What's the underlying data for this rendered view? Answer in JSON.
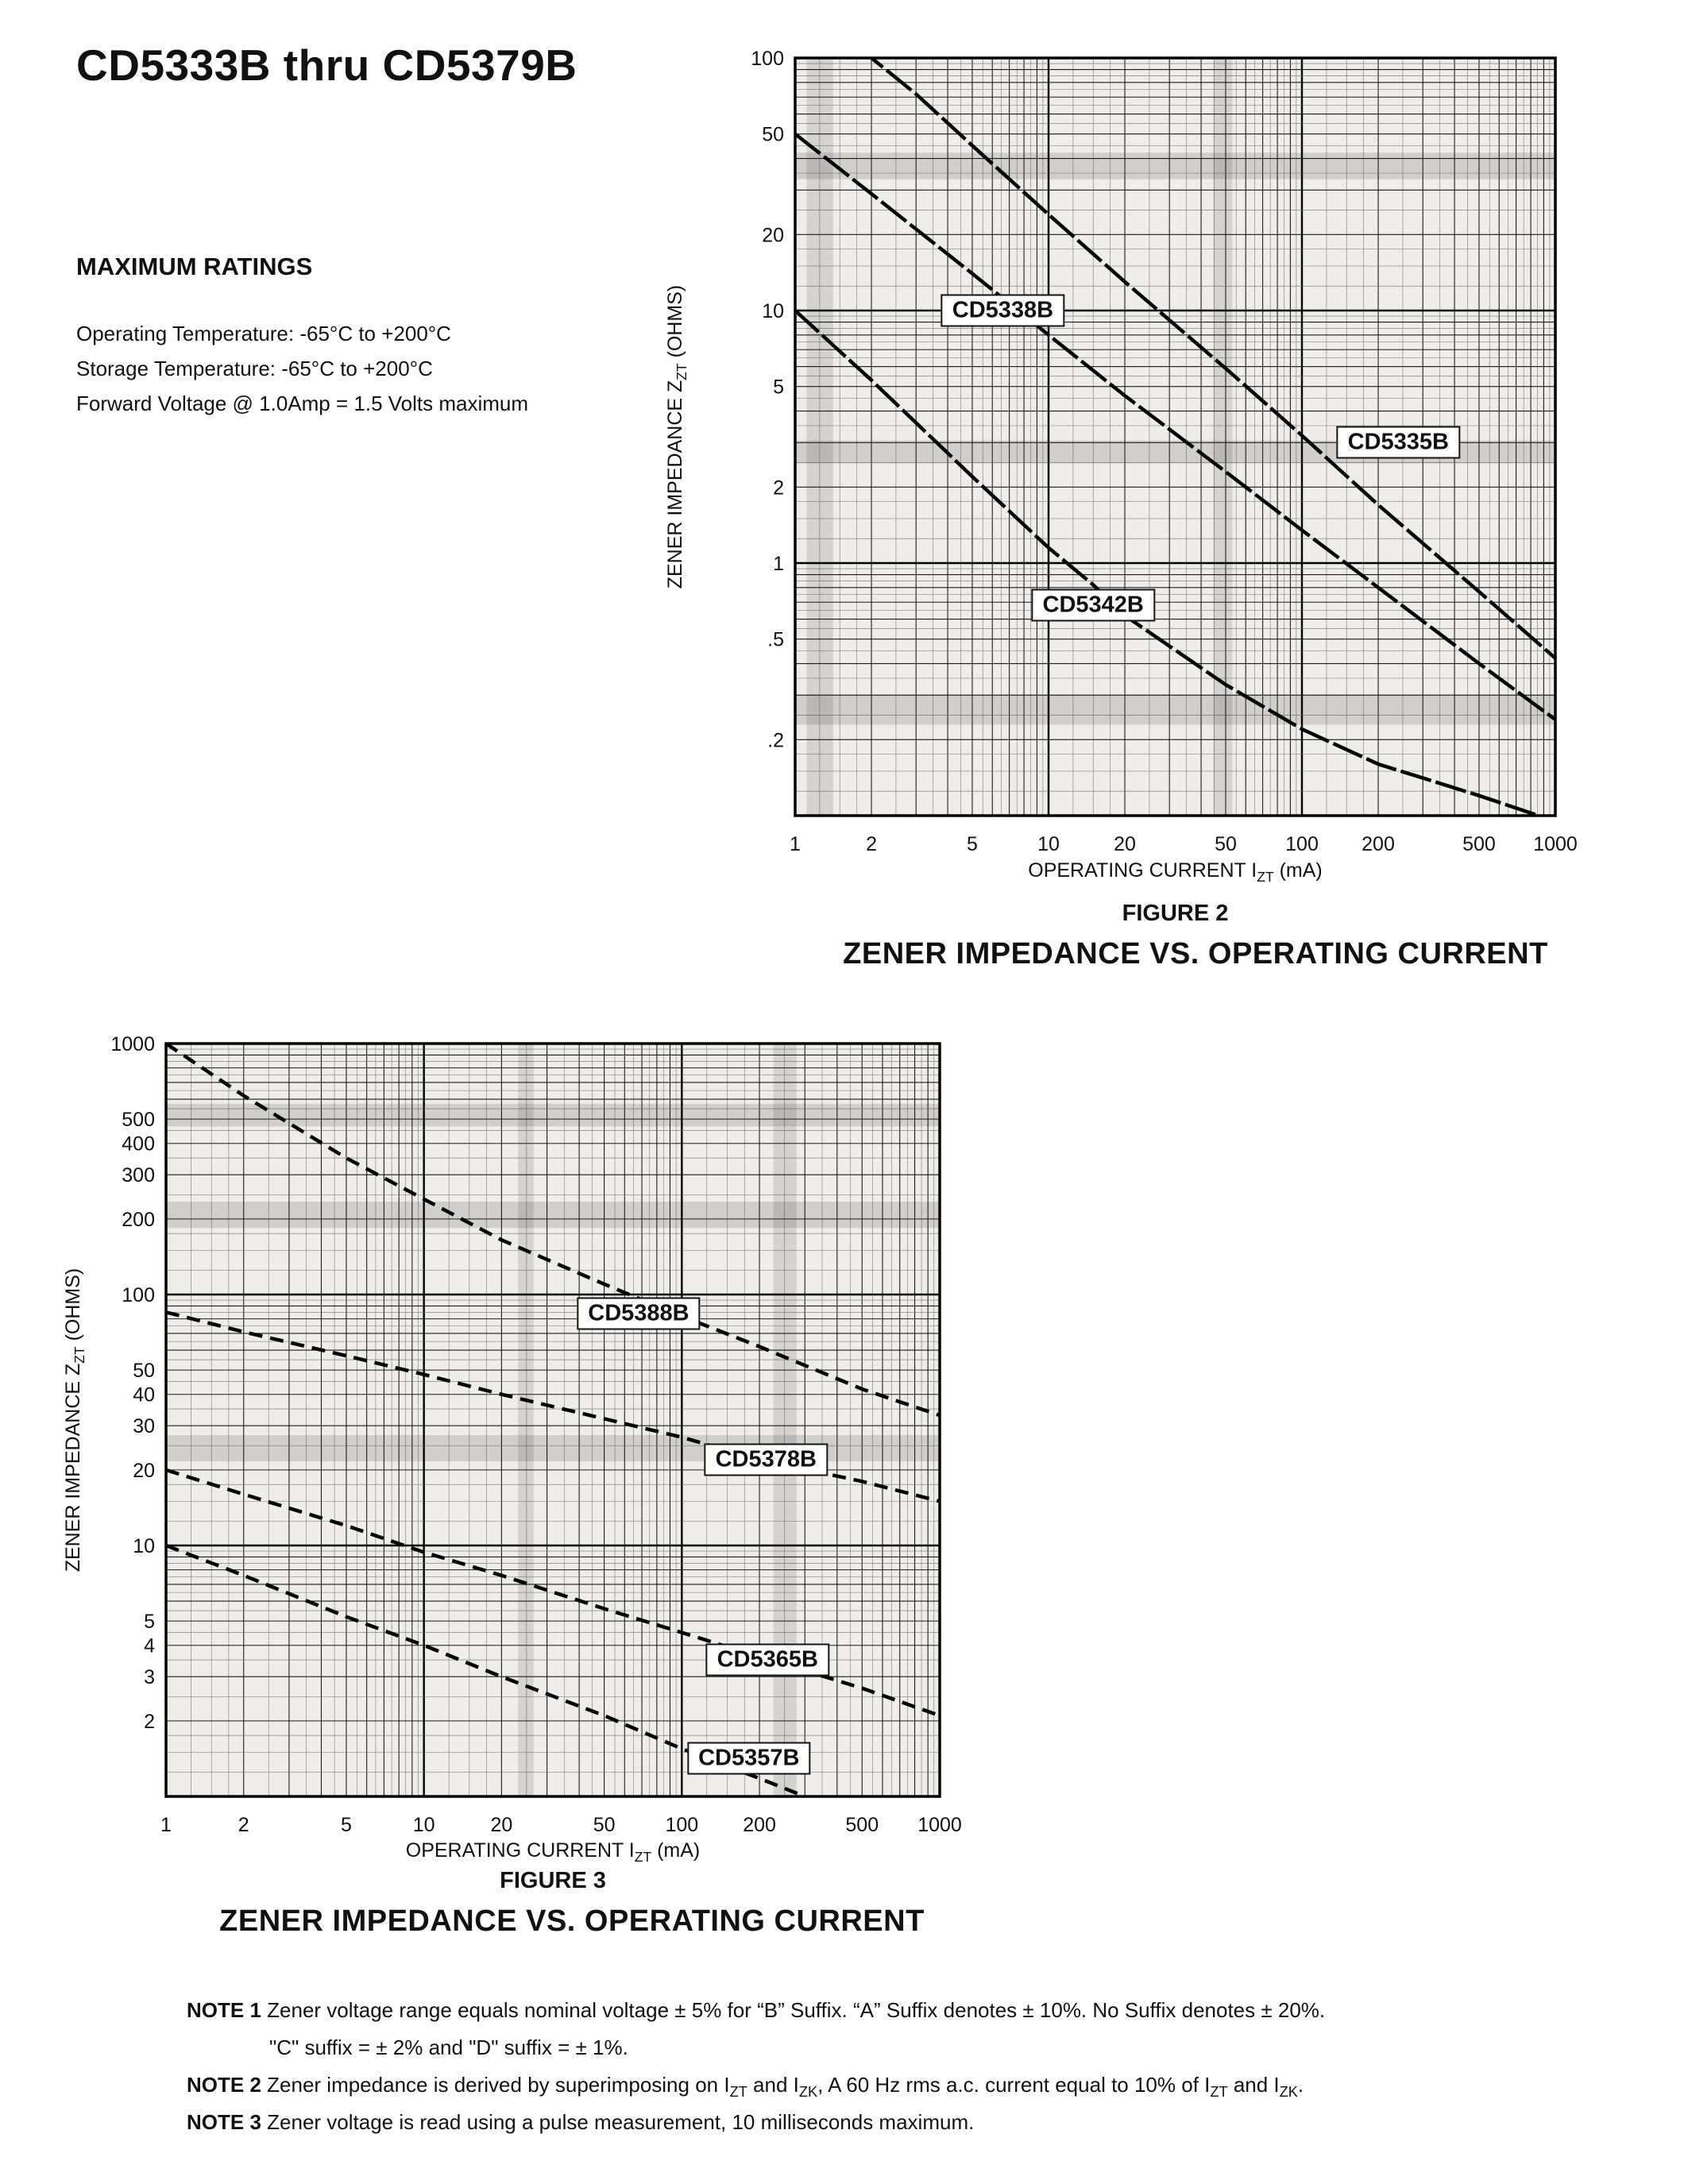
{
  "page": {
    "title": "CD5333B thru CD5379B",
    "max_ratings": {
      "heading": "MAXIMUM RATINGS",
      "lines": [
        "Operating Temperature: -65°C to +200°C",
        "Storage Temperature: -65°C to +200°C",
        "Forward Voltage @ 1.0Amp = 1.5 Volts maximum"
      ]
    },
    "notes": [
      {
        "indent": false,
        "segments": [
          {
            "text": "NOTE 1",
            "bold": true
          },
          {
            "text": " Zener voltage range equals nominal voltage ± 5% for “B” Suffix. “A” Suffix denotes ± 10%. No Suffix denotes ± 20%."
          }
        ]
      },
      {
        "indent": true,
        "segments": [
          {
            "text": "\"C\" suffix = ± 2% and \"D\" suffix = ± 1%."
          }
        ]
      },
      {
        "indent": false,
        "segments": [
          {
            "text": "NOTE 2",
            "bold": true
          },
          {
            "text": " Zener impedance is derived by superimposing on I"
          },
          {
            "text": "ZT",
            "sub": true
          },
          {
            "text": " and I"
          },
          {
            "text": "ZK",
            "sub": true
          },
          {
            "text": ", A 60 Hz rms a.c. current equal to 10% of I"
          },
          {
            "text": "ZT",
            "sub": true
          },
          {
            "text": " and I"
          },
          {
            "text": "ZK",
            "sub": true
          },
          {
            "text": "."
          }
        ]
      },
      {
        "indent": false,
        "segments": [
          {
            "text": "NOTE 3",
            "bold": true
          },
          {
            "text": " Zener voltage is read using a pulse measurement, 10 milliseconds maximum."
          }
        ]
      }
    ]
  },
  "chart_data": [
    {
      "type": "line",
      "figure": "FIGURE 2",
      "caption": "ZENER IMPEDANCE VS. OPERATING CURRENT",
      "x_scale": "log",
      "y_scale": "log",
      "xlim": [
        1,
        1000
      ],
      "ylim": [
        0.1,
        100
      ],
      "grid": true,
      "xlabel_rich": [
        {
          "text": "OPERATING CURRENT I"
        },
        {
          "text": "ZT",
          "sub": true
        },
        {
          "text": " (mA)"
        }
      ],
      "ylabel_rich": [
        {
          "text": "ZENER IMPEDANCE Z"
        },
        {
          "text": "ZT",
          "sub": true
        },
        {
          "text": " (OHMS)"
        }
      ],
      "x_ticks": [
        {
          "value": 1,
          "label": "1"
        },
        {
          "value": 2,
          "label": "2"
        },
        {
          "value": 5,
          "label": "5"
        },
        {
          "value": 10,
          "label": "10"
        },
        {
          "value": 20,
          "label": "20"
        },
        {
          "value": 50,
          "label": "50"
        },
        {
          "value": 100,
          "label": "100"
        },
        {
          "value": 200,
          "label": "200"
        },
        {
          "value": 500,
          "label": "500"
        },
        {
          "value": 1000,
          "label": "1000"
        }
      ],
      "y_ticks": [
        {
          "value": 100,
          "label": "100"
        },
        {
          "value": 50,
          "label": "50"
        },
        {
          "value": 20,
          "label": "20"
        },
        {
          "value": 10,
          "label": "10"
        },
        {
          "value": 5,
          "label": "5"
        },
        {
          "value": 2,
          "label": "2"
        },
        {
          "value": 1,
          "label": "1"
        },
        {
          "value": 0.5,
          "label": ".5"
        },
        {
          "value": 0.2,
          "label": ".2"
        }
      ],
      "series": [
        {
          "name": "CD5338B",
          "label_at": [
            6.6,
            10
          ],
          "points": [
            [
              1,
              50
            ],
            [
              2,
              29
            ],
            [
              5,
              14
            ],
            [
              10,
              8
            ],
            [
              20,
              4.6
            ],
            [
              50,
              2.3
            ],
            [
              100,
              1.35
            ],
            [
              200,
              0.8
            ],
            [
              500,
              0.4
            ],
            [
              1000,
              0.24
            ]
          ]
        },
        {
          "name": "CD5335B",
          "label_at": [
            240,
            3
          ],
          "points": [
            [
              1.8,
              112
            ],
            [
              2,
              100
            ],
            [
              3,
              72
            ],
            [
              5,
              45
            ],
            [
              10,
              24
            ],
            [
              20,
              13
            ],
            [
              50,
              5.9
            ],
            [
              100,
              3.2
            ],
            [
              200,
              1.7
            ],
            [
              500,
              0.77
            ],
            [
              1000,
              0.42
            ]
          ]
        },
        {
          "name": "CD5342B",
          "label_at": [
            15,
            0.68
          ],
          "points": [
            [
              1,
              10
            ],
            [
              2,
              5.3
            ],
            [
              5,
              2.2
            ],
            [
              10,
              1.15
            ],
            [
              15,
              0.82
            ],
            [
              20,
              0.62
            ],
            [
              50,
              0.33
            ],
            [
              100,
              0.22
            ],
            [
              200,
              0.16
            ],
            [
              500,
              0.12
            ],
            [
              1000,
              0.095
            ]
          ]
        }
      ]
    },
    {
      "type": "line",
      "figure": "FIGURE 3",
      "caption": "ZENER IMPEDANCE VS. OPERATING CURRENT",
      "x_scale": "log",
      "y_scale": "log",
      "xlim": [
        1,
        1000
      ],
      "ylim": [
        1,
        1000
      ],
      "grid": true,
      "xlabel_rich": [
        {
          "text": "OPERATING CURRENT I"
        },
        {
          "text": "ZT",
          "sub": true
        },
        {
          "text": " (mA)"
        }
      ],
      "ylabel_rich": [
        {
          "text": "ZENER IMPEDANCE Z"
        },
        {
          "text": "ZT",
          "sub": true
        },
        {
          "text": " (OHMS)"
        }
      ],
      "x_ticks": [
        {
          "value": 1,
          "label": "1"
        },
        {
          "value": 2,
          "label": "2"
        },
        {
          "value": 5,
          "label": "5"
        },
        {
          "value": 10,
          "label": "10"
        },
        {
          "value": 20,
          "label": "20"
        },
        {
          "value": 50,
          "label": "50"
        },
        {
          "value": 100,
          "label": "100"
        },
        {
          "value": 200,
          "label": "200"
        },
        {
          "value": 500,
          "label": "500"
        },
        {
          "value": 1000,
          "label": "1000"
        }
      ],
      "y_ticks": [
        {
          "value": 1000,
          "label": "1000"
        },
        {
          "value": 500,
          "label": "500"
        },
        {
          "value": 400,
          "label": "400"
        },
        {
          "value": 300,
          "label": "300"
        },
        {
          "value": 200,
          "label": "200"
        },
        {
          "value": 100,
          "label": "100"
        },
        {
          "value": 50,
          "label": "50"
        },
        {
          "value": 40,
          "label": "40"
        },
        {
          "value": 30,
          "label": "30"
        },
        {
          "value": 20,
          "label": "20"
        },
        {
          "value": 10,
          "label": "10"
        },
        {
          "value": 5,
          "label": "5"
        },
        {
          "value": 4,
          "label": "4"
        },
        {
          "value": 3,
          "label": "3"
        },
        {
          "value": 2,
          "label": "2"
        }
      ],
      "series": [
        {
          "name": "CD5388B",
          "label_at": [
            68,
            84
          ],
          "points": [
            [
              1,
              1000
            ],
            [
              2,
              620
            ],
            [
              5,
              350
            ],
            [
              10,
              240
            ],
            [
              20,
              165
            ],
            [
              50,
              110
            ],
            [
              100,
              82
            ],
            [
              200,
              62
            ],
            [
              500,
              42
            ],
            [
              1000,
              33
            ]
          ]
        },
        {
          "name": "CD5378B",
          "label_at": [
            212,
            22
          ],
          "points": [
            [
              1,
              85
            ],
            [
              2,
              71
            ],
            [
              5,
              57
            ],
            [
              10,
              48
            ],
            [
              20,
              40
            ],
            [
              50,
              32
            ],
            [
              100,
              27
            ],
            [
              200,
              22
            ],
            [
              500,
              18
            ],
            [
              1000,
              15
            ]
          ]
        },
        {
          "name": "CD5365B",
          "label_at": [
            215,
            3.5
          ],
          "points": [
            [
              1,
              20
            ],
            [
              2,
              16
            ],
            [
              5,
              12
            ],
            [
              10,
              9.4
            ],
            [
              20,
              7.6
            ],
            [
              50,
              5.6
            ],
            [
              100,
              4.5
            ],
            [
              200,
              3.6
            ],
            [
              500,
              2.7
            ],
            [
              1000,
              2.1
            ]
          ]
        },
        {
          "name": "CD5357B",
          "label_at": [
            182,
            1.42
          ],
          "points": [
            [
              1,
              10
            ],
            [
              2,
              7.6
            ],
            [
              5,
              5.2
            ],
            [
              10,
              4.0
            ],
            [
              20,
              3.0
            ],
            [
              50,
              2.1
            ],
            [
              100,
              1.55
            ],
            [
              200,
              1.18
            ],
            [
              300,
              1.0
            ]
          ]
        }
      ]
    }
  ]
}
